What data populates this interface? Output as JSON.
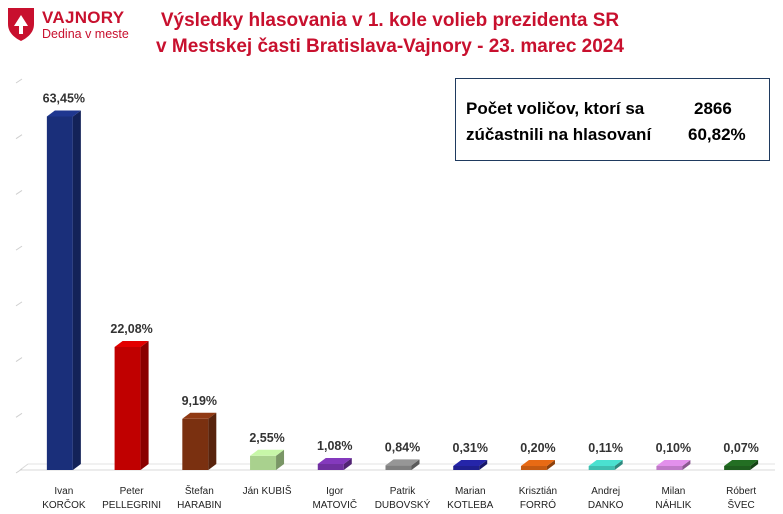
{
  "brand": {
    "name": "VAJNORY",
    "tagline": "Dedina v meste",
    "color": "#c8102e"
  },
  "title": {
    "line1": "Výsledky hlasovania v 1. kole volieb prezidenta SR",
    "line2": "v Mestskej časti Bratislava-Vajnory - 23. marec 2024"
  },
  "info": {
    "row1_label": "Počet voličov, ktorí sa",
    "row1_value": "2866",
    "row2_label": "zúčastnili na hlasovaní",
    "row2_value": "60,82%"
  },
  "chart_data": {
    "type": "bar",
    "title": "Výsledky hlasovania v 1. kole volieb prezidenta SR v Mestskej časti Bratislava-Vajnory - 23. marec 2024",
    "ylim": [
      0,
      70
    ],
    "grid": false,
    "categories": [
      [
        "Ivan",
        "KORČOK"
      ],
      [
        "Peter",
        "PELLEGRINI"
      ],
      [
        "Štefan",
        "HARABIN"
      ],
      [
        "Ján KUBIŠ"
      ],
      [
        "Igor",
        "MATOVIČ"
      ],
      [
        "Patrik",
        "DUBOVSKÝ"
      ],
      [
        "Marian",
        "KOTLEBA"
      ],
      [
        "Krisztián",
        "FORRÓ"
      ],
      [
        "Andrej",
        "DANKO"
      ],
      [
        "Milan",
        "NÁHLIK"
      ],
      [
        "Róbert",
        "ŠVEC"
      ]
    ],
    "values": [
      63.45,
      22.08,
      9.19,
      2.55,
      1.08,
      0.84,
      0.31,
      0.2,
      0.11,
      0.1,
      0.07
    ],
    "labels": [
      "63,45%",
      "22,08%",
      "9,19%",
      "2,55%",
      "1,08%",
      "0,84%",
      "0,31%",
      "0,20%",
      "0,11%",
      "0,10%",
      "0,07%"
    ],
    "colors": [
      "#1a2f7a",
      "#c00000",
      "#7a3010",
      "#a9d18e",
      "#7030a0",
      "#7f7f7f",
      "#1f1f8f",
      "#c55a11",
      "#3fbfb0",
      "#c07ac8",
      "#1e5e1e"
    ]
  }
}
